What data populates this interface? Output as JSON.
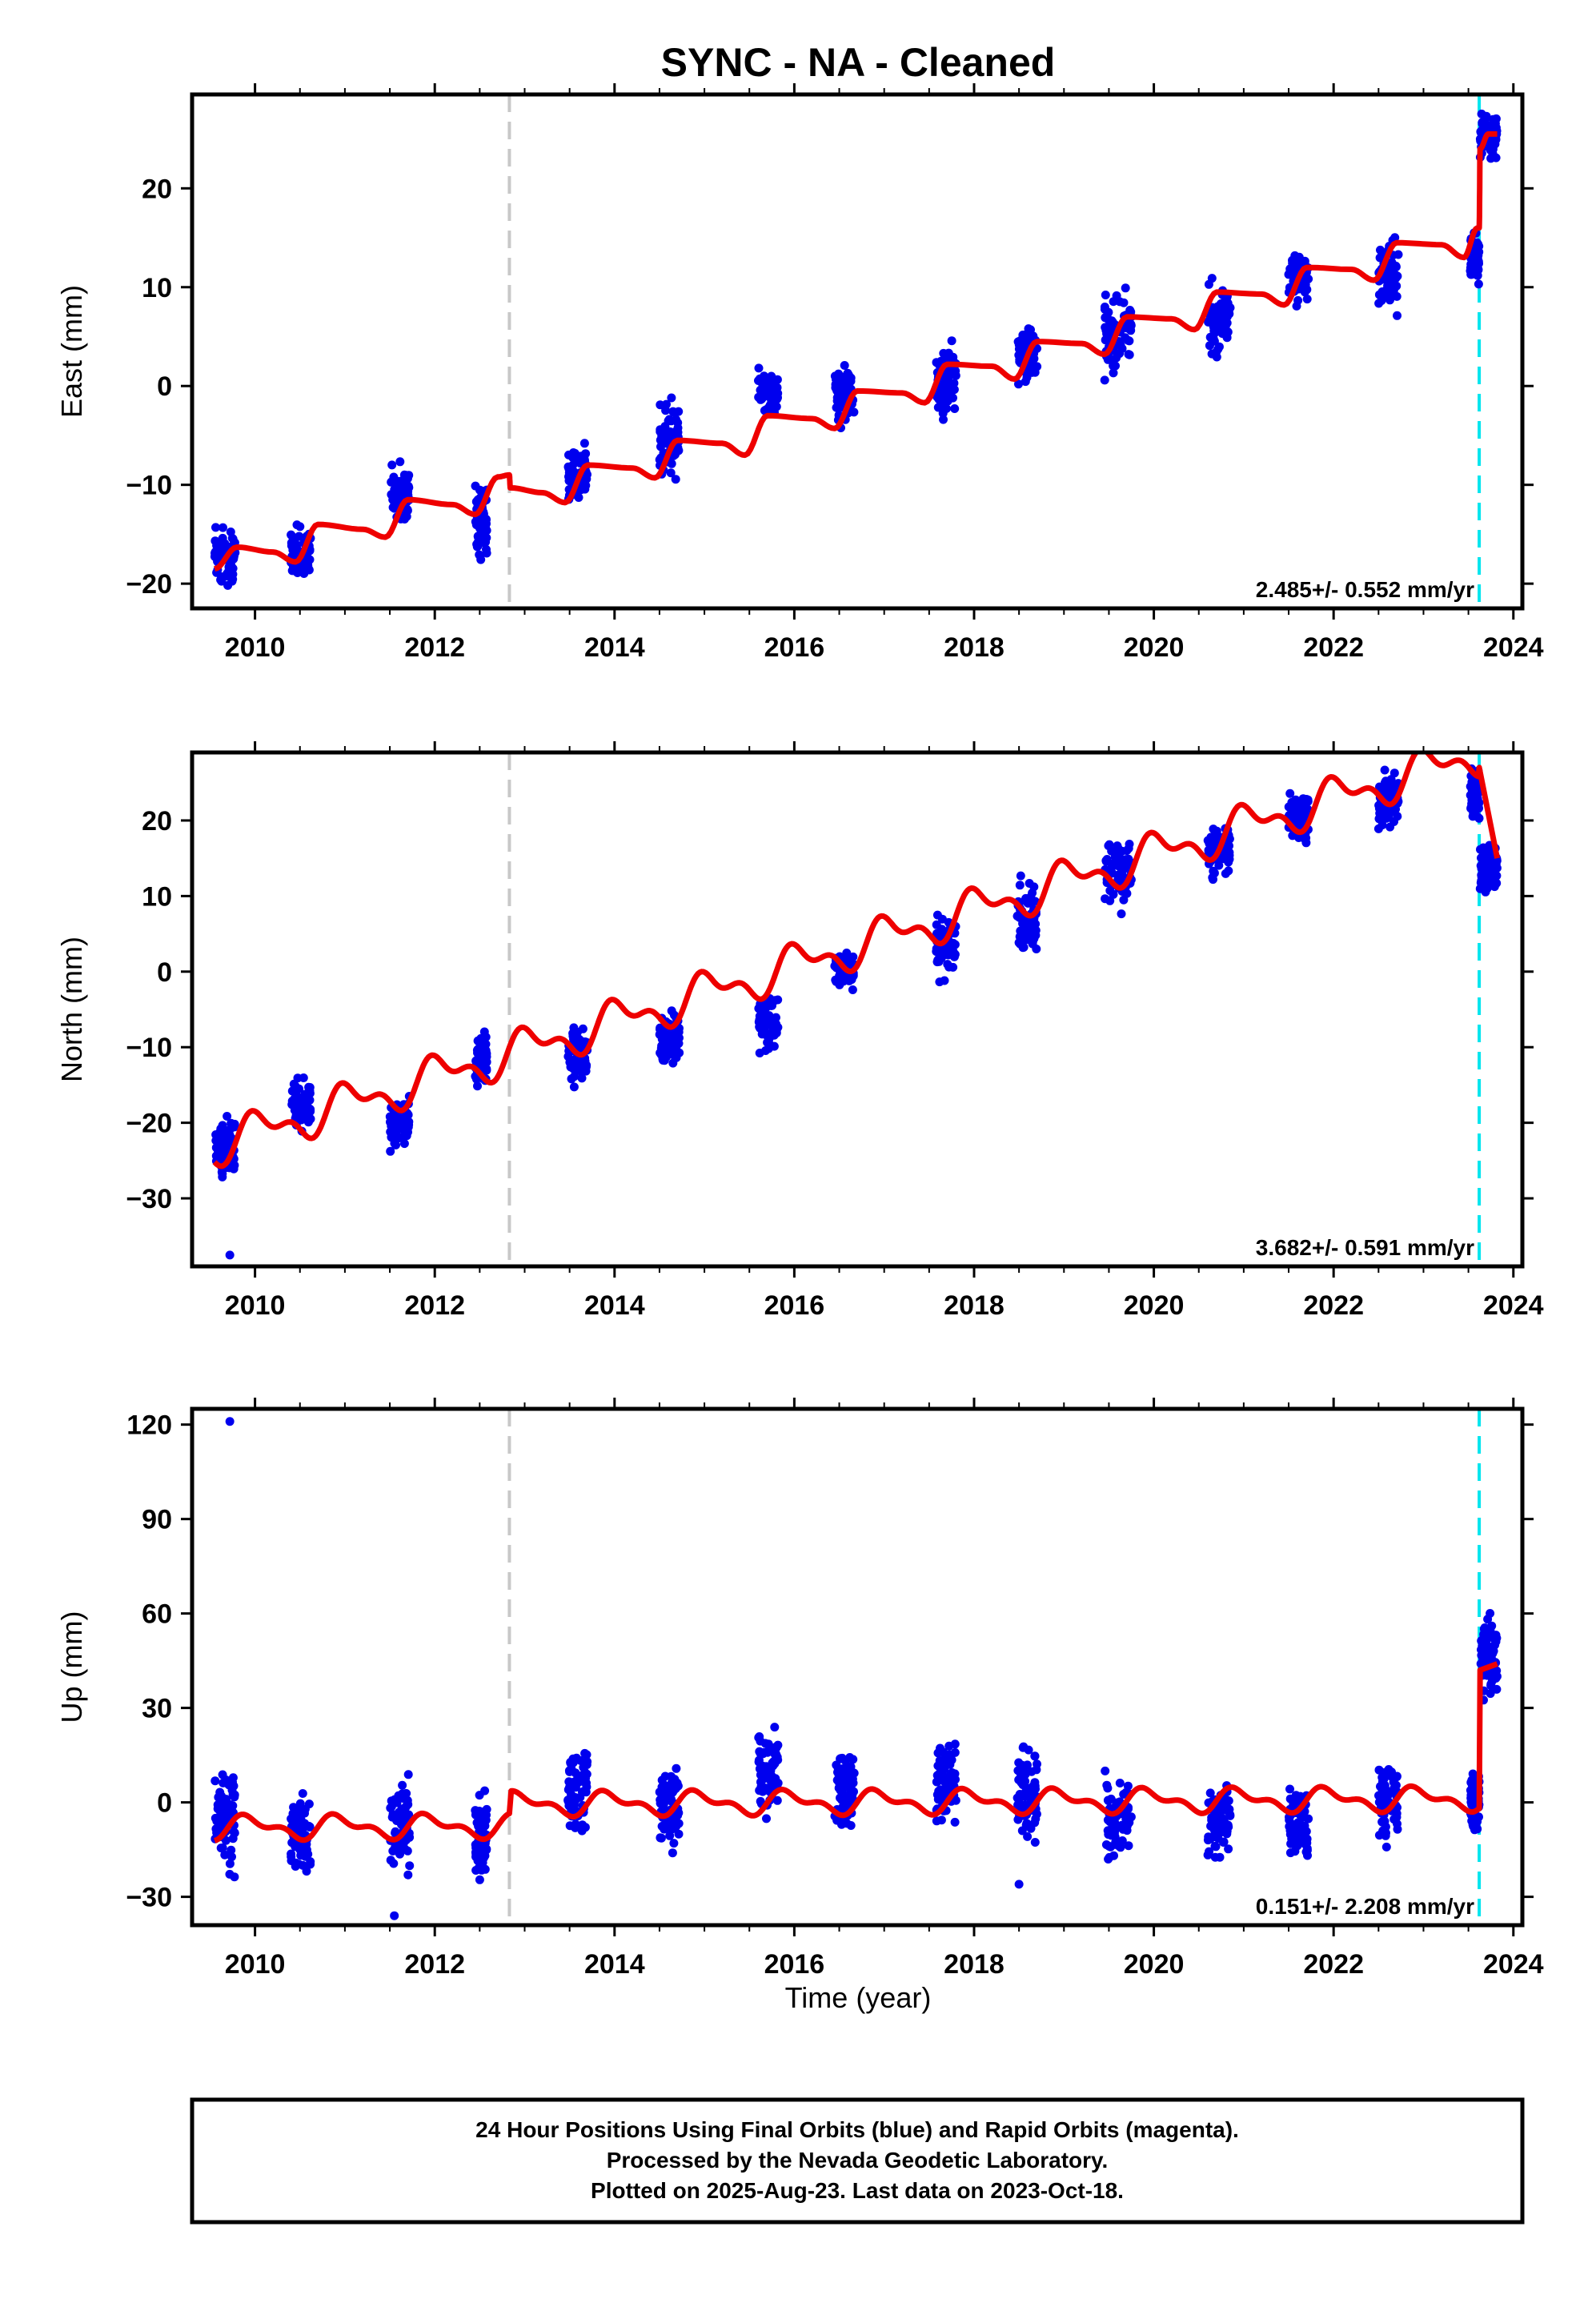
{
  "chart_data": {
    "title": "SYNC  - NA - Cleaned",
    "type": "scatter",
    "xlabel": "Time (year)",
    "xlim": [
      2009.3,
      2024.1
    ],
    "xticks": [
      2010,
      2012,
      2014,
      2016,
      2018,
      2020,
      2022,
      2024
    ],
    "colors": {
      "final_orbits": "#0000ee",
      "model": "#ee0000",
      "equipment_change": "#c8c8c8",
      "end_marker": "#00e5ee"
    },
    "vertical_markers": [
      {
        "x": 2012.83,
        "color": "#c8c8c8"
      },
      {
        "x": 2023.62,
        "color": "#00e5ee"
      }
    ],
    "footer_lines": [
      "24 Hour Positions Using Final Orbits (blue) and Rapid Orbits (magenta).",
      "Processed by the Nevada Geodetic Laboratory.",
      "Plotted on 2025-Aug-23. Last data on 2023-Oct-18."
    ],
    "panels": [
      {
        "id": "east",
        "ylabel": "East (mm)",
        "ylim": [
          -22.5,
          29.5
        ],
        "yticks": [
          -20,
          -10,
          0,
          10,
          20
        ],
        "rate": "2.485+/- 0.552 mm/yr",
        "campaigns": [
          {
            "t0": 2009.55,
            "t1": 2009.78,
            "min": -21.0,
            "max": -13.0
          },
          {
            "t0": 2010.4,
            "t1": 2010.62,
            "min": -20.5,
            "max": -13.5
          },
          {
            "t0": 2011.5,
            "t1": 2011.72,
            "min": -15.0,
            "max": -6.5
          },
          {
            "t0": 2012.45,
            "t1": 2012.58,
            "min": -18.5,
            "max": -9.5
          },
          {
            "t0": 2013.48,
            "t1": 2013.7,
            "min": -13.0,
            "max": -5.0
          },
          {
            "t0": 2014.5,
            "t1": 2014.72,
            "min": -11.0,
            "max": 0.0
          },
          {
            "t0": 2015.6,
            "t1": 2015.82,
            "min": -3.5,
            "max": 2.0
          },
          {
            "t0": 2016.45,
            "t1": 2016.67,
            "min": -5.0,
            "max": 3.0
          },
          {
            "t0": 2017.58,
            "t1": 2017.8,
            "min": -4.5,
            "max": 5.5
          },
          {
            "t0": 2018.48,
            "t1": 2018.7,
            "min": -0.5,
            "max": 7.0
          },
          {
            "t0": 2019.45,
            "t1": 2019.75,
            "min": -1.5,
            "max": 11.5
          },
          {
            "t0": 2020.6,
            "t1": 2020.85,
            "min": 1.5,
            "max": 11.5
          },
          {
            "t0": 2021.5,
            "t1": 2021.72,
            "min": 7.5,
            "max": 14.5
          },
          {
            "t0": 2022.5,
            "t1": 2022.72,
            "min": 6.5,
            "max": 16.0
          },
          {
            "t0": 2023.52,
            "t1": 2023.62,
            "min": 9.5,
            "max": 16.5
          },
          {
            "t0": 2023.63,
            "t1": 2023.82,
            "min": 22.0,
            "max": 28.5
          }
        ],
        "outliers": [],
        "model": {
          "type": "steps",
          "values": [
            [
              2009.55,
              -18.5
            ],
            [
              2009.8,
              -16.3
            ],
            [
              2010.2,
              -16.8
            ],
            [
              2010.45,
              -17.8
            ],
            [
              2010.7,
              -14.0
            ],
            [
              2011.2,
              -14.5
            ],
            [
              2011.45,
              -15.3
            ],
            [
              2011.7,
              -11.5
            ],
            [
              2012.2,
              -12.0
            ],
            [
              2012.45,
              -13.0
            ],
            [
              2012.7,
              -9.2
            ],
            [
              2012.83,
              -9.0
            ],
            [
              2012.84,
              -10.3
            ],
            [
              2013.2,
              -10.8
            ],
            [
              2013.45,
              -11.8
            ],
            [
              2013.7,
              -8.0
            ],
            [
              2014.2,
              -8.3
            ],
            [
              2014.45,
              -9.3
            ],
            [
              2014.7,
              -5.5
            ],
            [
              2015.2,
              -5.8
            ],
            [
              2015.45,
              -7.0
            ],
            [
              2015.7,
              -3.0
            ],
            [
              2016.2,
              -3.3
            ],
            [
              2016.45,
              -4.3
            ],
            [
              2016.7,
              -0.5
            ],
            [
              2017.2,
              -0.7
            ],
            [
              2017.45,
              -1.7
            ],
            [
              2017.7,
              2.2
            ],
            [
              2018.2,
              2.0
            ],
            [
              2018.45,
              0.7
            ],
            [
              2018.7,
              4.5
            ],
            [
              2019.2,
              4.3
            ],
            [
              2019.45,
              3.2
            ],
            [
              2019.7,
              7.0
            ],
            [
              2020.2,
              6.8
            ],
            [
              2020.45,
              5.7
            ],
            [
              2020.7,
              9.5
            ],
            [
              2021.2,
              9.3
            ],
            [
              2021.45,
              8.2
            ],
            [
              2021.7,
              12.0
            ],
            [
              2022.2,
              11.8
            ],
            [
              2022.45,
              10.7
            ],
            [
              2022.7,
              14.5
            ],
            [
              2023.2,
              14.3
            ],
            [
              2023.45,
              13.0
            ],
            [
              2023.6,
              16.0
            ],
            [
              2023.62,
              16.0
            ],
            [
              2023.63,
              24.0
            ],
            [
              2023.72,
              25.5
            ],
            [
              2023.82,
              25.5
            ]
          ]
        }
      },
      {
        "id": "north",
        "ylabel": "North (mm)",
        "ylim": [
          -39,
          29
        ],
        "yticks": [
          -30,
          -20,
          -10,
          0,
          10,
          20
        ],
        "rate": "3.682+/- 0.591 mm/yr",
        "campaigns": [
          {
            "t0": 2009.55,
            "t1": 2009.78,
            "min": -28.0,
            "max": -18.5
          },
          {
            "t0": 2010.4,
            "t1": 2010.62,
            "min": -22.0,
            "max": -13.5
          },
          {
            "t0": 2011.5,
            "t1": 2011.72,
            "min": -24.5,
            "max": -15.5
          },
          {
            "t0": 2012.45,
            "t1": 2012.58,
            "min": -16.0,
            "max": -7.0
          },
          {
            "t0": 2013.48,
            "t1": 2013.7,
            "min": -16.0,
            "max": -5.5
          },
          {
            "t0": 2014.5,
            "t1": 2014.72,
            "min": -13.0,
            "max": -4.5
          },
          {
            "t0": 2015.6,
            "t1": 2015.82,
            "min": -12.0,
            "max": -1.5
          },
          {
            "t0": 2016.45,
            "t1": 2016.67,
            "min": -3.0,
            "max": 3.5
          },
          {
            "t0": 2017.58,
            "t1": 2017.8,
            "min": -2.0,
            "max": 9.0
          },
          {
            "t0": 2018.48,
            "t1": 2018.7,
            "min": 0.5,
            "max": 13.5
          },
          {
            "t0": 2019.45,
            "t1": 2019.75,
            "min": 7.0,
            "max": 20.0
          },
          {
            "t0": 2020.6,
            "t1": 2020.85,
            "min": 11.5,
            "max": 20.5
          },
          {
            "t0": 2021.5,
            "t1": 2021.72,
            "min": 16.0,
            "max": 25.0
          },
          {
            "t0": 2022.5,
            "t1": 2022.72,
            "min": 18.0,
            "max": 27.5
          },
          {
            "t0": 2023.52,
            "t1": 2023.62,
            "min": 19.0,
            "max": 28.0
          },
          {
            "t0": 2023.63,
            "t1": 2023.82,
            "min": 9.0,
            "max": 18.5
          }
        ],
        "outliers": [
          {
            "x": 2009.72,
            "y": -37.5
          }
        ],
        "model": {
          "type": "sine",
          "trend": 3.682,
          "t_ref": 2009.55,
          "y_ref": -23.0,
          "amp": 2.2,
          "phase": 0.2,
          "end_drop": [
            [
              2023.62,
              27.0
            ],
            [
              2023.82,
              15.0
            ]
          ]
        }
      },
      {
        "id": "up",
        "ylabel": "Up (mm)",
        "ylim": [
          -39,
          125
        ],
        "yticks": [
          -30,
          0,
          30,
          60,
          90,
          120
        ],
        "rate": "0.151+/- 2.208 mm/yr",
        "campaigns": [
          {
            "t0": 2009.55,
            "t1": 2009.78,
            "min": -27.0,
            "max": 15.0
          },
          {
            "t0": 2010.4,
            "t1": 2010.62,
            "min": -29.0,
            "max": 6.0
          },
          {
            "t0": 2011.5,
            "t1": 2011.72,
            "min": -26.0,
            "max": 13.0
          },
          {
            "t0": 2012.45,
            "t1": 2012.58,
            "min": -31.0,
            "max": 10.0
          },
          {
            "t0": 2013.48,
            "t1": 2013.7,
            "min": -12.0,
            "max": 21.0
          },
          {
            "t0": 2014.5,
            "t1": 2014.72,
            "min": -18.0,
            "max": 17.0
          },
          {
            "t0": 2015.6,
            "t1": 2015.82,
            "min": -6.0,
            "max": 27.0
          },
          {
            "t0": 2016.45,
            "t1": 2016.67,
            "min": -12.0,
            "max": 23.0
          },
          {
            "t0": 2017.58,
            "t1": 2017.8,
            "min": -13.0,
            "max": 25.0
          },
          {
            "t0": 2018.48,
            "t1": 2018.7,
            "min": -20.0,
            "max": 23.0
          },
          {
            "t0": 2019.45,
            "t1": 2019.75,
            "min": -22.0,
            "max": 12.0
          },
          {
            "t0": 2020.6,
            "t1": 2020.85,
            "min": -22.0,
            "max": 8.0
          },
          {
            "t0": 2021.5,
            "t1": 2021.72,
            "min": -22.0,
            "max": 9.0
          },
          {
            "t0": 2022.5,
            "t1": 2022.72,
            "min": -17.0,
            "max": 19.0
          },
          {
            "t0": 2023.52,
            "t1": 2023.62,
            "min": -13.0,
            "max": 15.0
          },
          {
            "t0": 2023.63,
            "t1": 2023.82,
            "min": 30.0,
            "max": 63.0
          }
        ],
        "outliers": [
          {
            "x": 2009.72,
            "y": 121.0
          },
          {
            "x": 2011.55,
            "y": -36.0
          },
          {
            "x": 2018.5,
            "y": -26.0
          }
        ],
        "model": {
          "type": "sine",
          "trend": 0.15,
          "t_ref": 2009.55,
          "y_ref": -8.0,
          "amp": 3.0,
          "phase": 0.3,
          "end_jump": [
            [
              2023.62,
              -2.0
            ],
            [
              2023.63,
              42.0
            ],
            [
              2023.82,
              44.0
            ]
          ]
        }
      }
    ]
  }
}
